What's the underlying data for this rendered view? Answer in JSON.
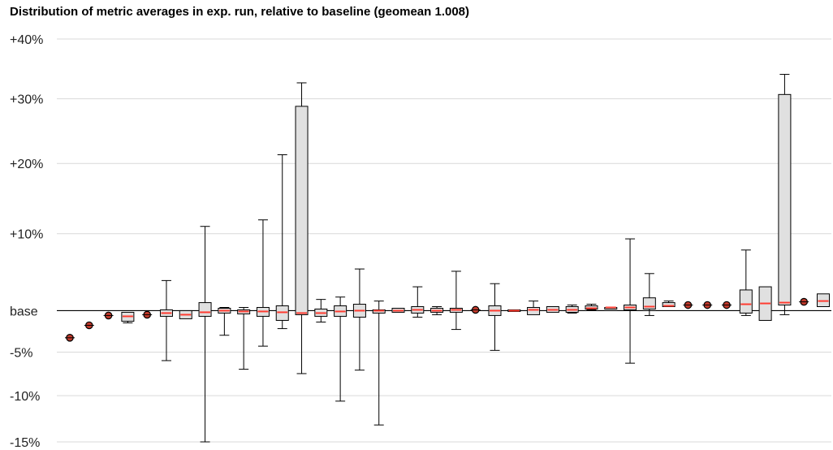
{
  "chart_data": {
    "type": "box",
    "title": "Distribution of metric averages in exp. run, relative to baseline (geomean 1.008)",
    "xlabel": "",
    "ylabel": "",
    "ylim": [
      -15,
      40
    ],
    "y_scale": "log-ratio",
    "yticks": [
      {
        "value": 40,
        "label": "+40%"
      },
      {
        "value": 30,
        "label": "+30%"
      },
      {
        "value": 20,
        "label": "+20%"
      },
      {
        "value": 10,
        "label": "+10%"
      },
      {
        "value": 0,
        "label": "base"
      },
      {
        "value": -5,
        "label": "-5%"
      },
      {
        "value": -10,
        "label": "-10%"
      },
      {
        "value": -15,
        "label": "-15%"
      }
    ],
    "grid": true,
    "colors": {
      "box_fill": "#e0e0e0",
      "median": "#ff3b30",
      "outline": "#000000",
      "grid": "#d9d9d9",
      "single_point_fill": "#c0392b"
    },
    "boxes": [
      {
        "min": -3.3,
        "q1": -3.3,
        "median": -3.3,
        "q3": -3.3,
        "max": -3.3,
        "single": true
      },
      {
        "min": -1.8,
        "q1": -1.8,
        "median": -1.8,
        "q3": -1.8,
        "max": -1.8,
        "single": true
      },
      {
        "min": -0.6,
        "q1": -0.6,
        "median": -0.6,
        "q3": -0.6,
        "max": -0.6,
        "single": true
      },
      {
        "min": -1.5,
        "q1": -1.3,
        "median": -0.7,
        "q3": -0.2,
        "max": -0.2
      },
      {
        "min": -0.5,
        "q1": -0.5,
        "median": -0.5,
        "q3": -0.5,
        "max": -0.5,
        "single": true
      },
      {
        "min": -6.0,
        "q1": -0.7,
        "median": -0.3,
        "q3": 0.1,
        "max": 3.8
      },
      {
        "min": -1.0,
        "q1": -1.0,
        "median": -0.5,
        "q3": 0.0,
        "max": 0.0
      },
      {
        "min": -15.0,
        "q1": -0.7,
        "median": -0.2,
        "q3": 1.0,
        "max": 11.0
      },
      {
        "min": -3.0,
        "q1": -0.3,
        "median": 0.0,
        "q3": 0.3,
        "max": 0.4
      },
      {
        "min": -7.0,
        "q1": -0.4,
        "median": -0.1,
        "q3": 0.1,
        "max": 0.4
      },
      {
        "min": -4.3,
        "q1": -0.7,
        "median": -0.1,
        "q3": 0.4,
        "max": 11.9
      },
      {
        "min": -2.2,
        "q1": -1.2,
        "median": -0.2,
        "q3": 0.6,
        "max": 21.3
      },
      {
        "min": -7.5,
        "q1": -0.5,
        "median": -0.3,
        "q3": 28.8,
        "max": 32.6
      },
      {
        "min": -1.4,
        "q1": -0.7,
        "median": -0.3,
        "q3": 0.2,
        "max": 1.4
      },
      {
        "min": -10.6,
        "q1": -0.7,
        "median": -0.1,
        "q3": 0.6,
        "max": 1.7
      },
      {
        "min": -7.1,
        "q1": -0.8,
        "median": 0.0,
        "q3": 0.8,
        "max": 5.3
      },
      {
        "min": -13.2,
        "q1": -0.3,
        "median": 0.0,
        "q3": 0.1,
        "max": 1.2
      },
      {
        "min": -0.2,
        "q1": -0.2,
        "median": 0.0,
        "q3": 0.3,
        "max": 0.3
      },
      {
        "min": -0.8,
        "q1": -0.3,
        "median": 0.1,
        "q3": 0.5,
        "max": 3.0
      },
      {
        "min": -0.5,
        "q1": -0.2,
        "median": 0.0,
        "q3": 0.3,
        "max": 0.5
      },
      {
        "min": -2.3,
        "q1": -0.2,
        "median": 0.1,
        "q3": 0.3,
        "max": 5.0
      },
      {
        "min": 0.1,
        "q1": 0.1,
        "median": 0.1,
        "q3": 0.1,
        "max": 0.1,
        "single": true
      },
      {
        "min": -4.8,
        "q1": -0.6,
        "median": 0.0,
        "q3": 0.6,
        "max": 3.4
      },
      {
        "min": -0.1,
        "q1": -0.1,
        "median": 0.0,
        "q3": 0.1,
        "max": 0.1
      },
      {
        "min": -0.5,
        "q1": -0.5,
        "median": 0.1,
        "q3": 0.4,
        "max": 1.2
      },
      {
        "min": -0.2,
        "q1": -0.2,
        "median": 0.1,
        "q3": 0.5,
        "max": 0.5
      },
      {
        "min": -0.3,
        "q1": -0.2,
        "median": 0.1,
        "q3": 0.5,
        "max": 0.7
      },
      {
        "min": 0.1,
        "q1": 0.2,
        "median": 0.3,
        "q3": 0.6,
        "max": 0.8
      },
      {
        "min": 0.4,
        "q1": 0.4,
        "median": 0.4,
        "q3": 0.4,
        "max": 0.4
      },
      {
        "min": -6.3,
        "q1": 0.1,
        "median": 0.4,
        "q3": 0.7,
        "max": 9.3
      },
      {
        "min": -0.6,
        "q1": 0.2,
        "median": 0.5,
        "q3": 1.6,
        "max": 4.7
      },
      {
        "min": 0.5,
        "q1": 0.5,
        "median": 0.6,
        "q3": 1.0,
        "max": 1.2
      },
      {
        "min": 0.7,
        "q1": 0.7,
        "median": 0.7,
        "q3": 0.7,
        "max": 0.7,
        "single": true
      },
      {
        "min": 0.7,
        "q1": 0.7,
        "median": 0.7,
        "q3": 0.7,
        "max": 0.7,
        "single": true
      },
      {
        "min": 0.7,
        "q1": 0.7,
        "median": 0.7,
        "q3": 0.7,
        "max": 0.7,
        "single": true
      },
      {
        "min": -0.6,
        "q1": -0.3,
        "median": 0.8,
        "q3": 2.6,
        "max": 7.8
      },
      {
        "min": -1.2,
        "q1": -1.2,
        "median": 0.9,
        "q3": 3.0,
        "max": 3.0
      },
      {
        "min": -0.5,
        "q1": 0.7,
        "median": 1.0,
        "q3": 30.7,
        "max": 34.0
      },
      {
        "min": 1.1,
        "q1": 1.1,
        "median": 1.1,
        "q3": 1.1,
        "max": 1.1,
        "single": true
      },
      {
        "min": 0.5,
        "q1": 0.5,
        "median": 1.2,
        "q3": 2.1,
        "max": 2.1
      }
    ]
  }
}
